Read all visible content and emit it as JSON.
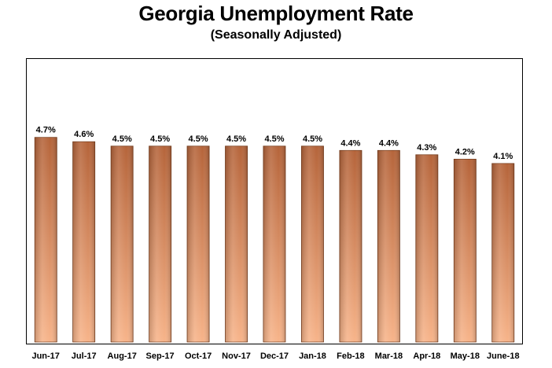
{
  "chart_data": {
    "type": "bar",
    "title": "Georgia Unemployment Rate",
    "subtitle": "(Seasonally Adjusted)",
    "categories": [
      "Jun-17",
      "Jul-17",
      "Aug-17",
      "Sep-17",
      "Oct-17",
      "Nov-17",
      "Dec-17",
      "Jan-18",
      "Feb-18",
      "Mar-18",
      "Apr-18",
      "May-18",
      "June-18"
    ],
    "values": [
      4.7,
      4.6,
      4.5,
      4.5,
      4.5,
      4.5,
      4.5,
      4.5,
      4.4,
      4.4,
      4.3,
      4.2,
      4.1
    ],
    "data_labels": [
      "4.7%",
      "4.6%",
      "4.5%",
      "4.5%",
      "4.5%",
      "4.5%",
      "4.5%",
      "4.5%",
      "4.4%",
      "4.4%",
      "4.3%",
      "4.2%",
      "4.1%"
    ],
    "xlabel": "",
    "ylabel": "",
    "ylim": [
      0,
      6.5
    ],
    "grid": false,
    "bar_color_top": "#b5643a",
    "bar_color_bottom": "#f7b48a",
    "bar_edge": "#7a3f1e"
  }
}
